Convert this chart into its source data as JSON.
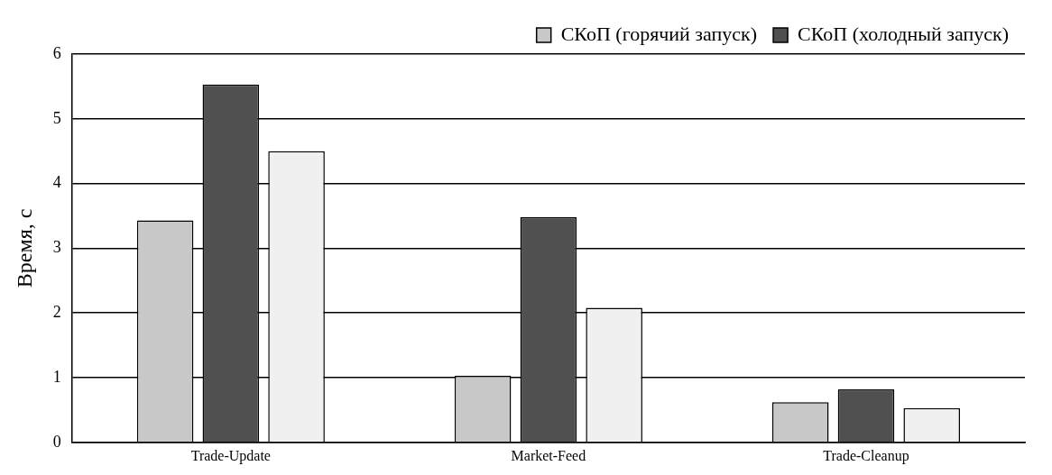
{
  "chart_data": {
    "type": "bar",
    "ylabel": "Время, с",
    "categories": [
      "Trade-Update",
      "Market-Feed",
      "Trade-Cleanup"
    ],
    "series": [
      {
        "name": "СКоП (горячий запуск)",
        "color": "#c8c8c8",
        "values": [
          3.43,
          1.03,
          0.62
        ]
      },
      {
        "name": "СКоП (холодный запуск)",
        "color": "#505050",
        "values": [
          5.53,
          3.48,
          0.82
        ]
      },
      {
        "color": "#f0f0f0",
        "values": [
          4.5,
          2.08,
          0.53
        ]
      }
    ],
    "ylim": [
      0,
      6
    ],
    "yticks": [
      0,
      1,
      2,
      3,
      4,
      5,
      6
    ],
    "grid": "y",
    "legend": "top right"
  }
}
